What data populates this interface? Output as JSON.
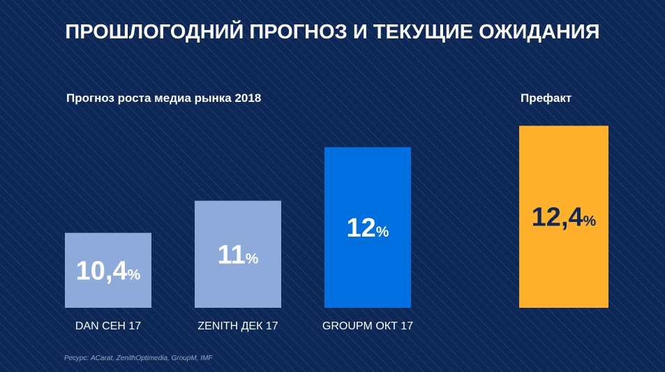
{
  "title": "ПРОШЛОГОДНИЙ ПРОГНОЗ И ТЕКУЩИЕ ОЖИДАНИЯ",
  "source": "Ресурс: ACarat, ZenithOptimedia, GroupM, IMF",
  "chart_data": {
    "type": "bar",
    "groups": [
      {
        "title": "Прогноз роста медиа рынка 2018",
        "categories": [
          "DAN СЕН 17",
          "ZENITH ДЕК 17",
          "GROUPM ОКТ 17"
        ],
        "values": [
          10.4,
          11,
          12
        ],
        "labels": [
          "10,4",
          "11",
          "12"
        ]
      },
      {
        "title": "Префакт",
        "categories": [
          ""
        ],
        "values": [
          12.4
        ],
        "labels": [
          "12,4"
        ]
      }
    ],
    "unit": "%",
    "colors": [
      "#8eaadb",
      "#8eaadb",
      "#0070e0",
      "#ffb12b"
    ],
    "label_colors": [
      "#ffffff",
      "#ffffff",
      "#ffffff",
      "#0d2757"
    ],
    "ylim": [
      9,
      13
    ]
  }
}
